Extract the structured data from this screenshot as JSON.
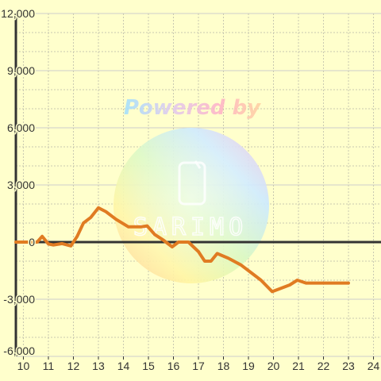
{
  "chart_data": {
    "type": "line",
    "title": "",
    "xlabel": "",
    "ylabel": "",
    "xlim": [
      9.7,
      24.3
    ],
    "ylim": [
      -6000,
      12000
    ],
    "x_ticks": [
      10,
      11,
      12,
      13,
      14,
      15,
      16,
      17,
      18,
      19,
      20,
      21,
      22,
      23,
      24
    ],
    "y_ticks": [
      -6000,
      -3000,
      0,
      3000,
      6000,
      9000,
      12000
    ],
    "x_tick_labels": [
      "10",
      "11",
      "12",
      "13",
      "14",
      "15",
      "16",
      "17",
      "18",
      "19",
      "20",
      "21",
      "22",
      "23",
      "24"
    ],
    "y_tick_labels": [
      "-6,000",
      "-3,000",
      "0",
      "3,000",
      "6,000",
      "9,000",
      "12,000"
    ],
    "grid": true,
    "legend": "none",
    "colors": {
      "background": "#ffffcc",
      "grid_major": "#cccccc",
      "grid_minor": "#c8c8b0",
      "axis": "#333333",
      "line": "#e07b22"
    },
    "series": [
      {
        "values_x": [
          9.7,
          10.55,
          10.75,
          11.0,
          11.2,
          11.55,
          11.9,
          12.15,
          12.4,
          12.7,
          13.0,
          13.3,
          13.7,
          14.2,
          14.7,
          14.95,
          15.25,
          15.6,
          15.95,
          16.2,
          16.6,
          17.0,
          17.25,
          17.5,
          17.75,
          18.2,
          18.7,
          19.1,
          19.5,
          19.95,
          20.35,
          20.65,
          20.95,
          21.3,
          22.0,
          22.6,
          23.0
        ],
        "values_y": [
          0,
          0,
          300,
          -100,
          -150,
          -80,
          -200,
          300,
          1000,
          1300,
          1800,
          1600,
          1200,
          800,
          800,
          850,
          400,
          100,
          -250,
          0,
          0,
          -500,
          -1000,
          -1000,
          -600,
          -850,
          -1200,
          -1600,
          -2000,
          -2600,
          -2400,
          -2250,
          -2000,
          -2150,
          -2150,
          -2150,
          -2150
        ]
      }
    ]
  },
  "watermark": {
    "text": "Powered by",
    "brand": "SARIMO",
    "colors": [
      "#f4b8d8",
      "#c8e6ff",
      "#d6f5c0",
      "#fff2b3",
      "#ffd6b0"
    ]
  }
}
